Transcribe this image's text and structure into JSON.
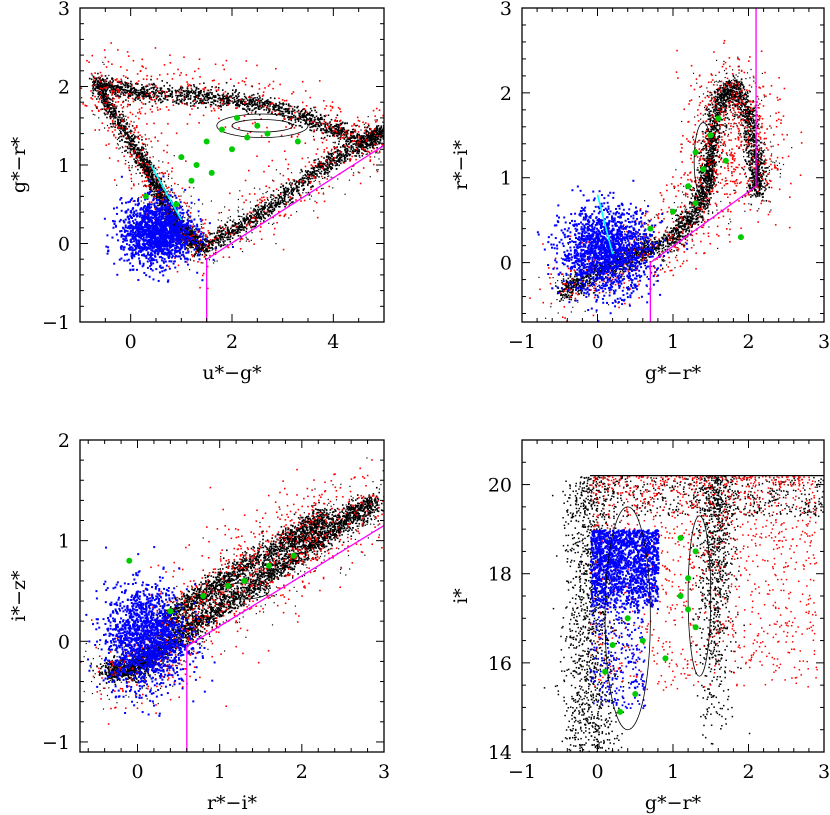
{
  "chart_data": [
    {
      "type": "scatter",
      "panel": "top-left",
      "xlabel": "u*−g*",
      "ylabel": "g*−r*",
      "xlim": [
        -1,
        5
      ],
      "ylim": [
        -1,
        3
      ],
      "xticks": [
        0,
        2,
        4
      ],
      "yticks": [
        -1,
        0,
        1,
        2,
        3
      ],
      "series_colors": {
        "black": "#000000",
        "red": "#ff0000",
        "blue": "#0000ff",
        "green": "#00cc00",
        "magenta": "#ff00ff",
        "cyan": "#00ffff"
      },
      "black_locus": [
        [
          -0.7,
          2.05
        ],
        [
          -0.3,
          1.6
        ],
        [
          0.2,
          1.1
        ],
        [
          0.5,
          0.7
        ],
        [
          0.8,
          0.35
        ],
        [
          1.1,
          0.1
        ],
        [
          1.4,
          -0.05
        ],
        [
          2.2,
          0.25
        ],
        [
          3.0,
          0.6
        ],
        [
          3.8,
          1.0
        ],
        [
          4.6,
          1.3
        ],
        [
          5.0,
          1.45
        ]
      ],
      "black_upper_arc": [
        [
          -0.7,
          2.05
        ],
        [
          0.0,
          1.95
        ],
        [
          1.0,
          1.9
        ],
        [
          2.0,
          1.85
        ],
        [
          3.0,
          1.7
        ],
        [
          3.9,
          1.5
        ],
        [
          4.6,
          1.3
        ]
      ],
      "blue_center": [
        0.5,
        0.15
      ],
      "blue_spread": [
        0.35,
        0.2
      ],
      "green_points": [
        [
          1.0,
          1.1
        ],
        [
          1.2,
          0.8
        ],
        [
          1.5,
          1.3
        ],
        [
          1.8,
          1.45
        ],
        [
          2.1,
          1.6
        ],
        [
          2.3,
          1.35
        ],
        [
          2.5,
          1.5
        ],
        [
          0.9,
          0.5
        ],
        [
          1.3,
          1.0
        ],
        [
          2.0,
          1.2
        ],
        [
          2.7,
          1.4
        ],
        [
          3.3,
          1.3
        ],
        [
          1.6,
          0.9
        ],
        [
          0.3,
          0.6
        ]
      ],
      "magenta_line": [
        [
          1.5,
          -1.0
        ],
        [
          1.5,
          -0.2
        ],
        [
          5.0,
          1.25
        ]
      ],
      "cyan_line": [
        [
          0.4,
          1.0
        ],
        [
          1.0,
          0.3
        ]
      ],
      "contours": [
        {
          "center": [
            2.6,
            1.5
          ],
          "rx": 0.6,
          "ry": 0.08
        },
        {
          "center": [
            2.6,
            1.5
          ],
          "rx": 0.9,
          "ry": 0.15
        }
      ]
    },
    {
      "type": "scatter",
      "panel": "top-right",
      "xlabel": "g*−r*",
      "ylabel": "r*−i*",
      "xlim": [
        -1,
        3
      ],
      "ylim": [
        -0.7,
        3
      ],
      "xticks": [
        -1,
        0,
        1,
        2,
        3
      ],
      "yticks": [
        0,
        1,
        2,
        3
      ],
      "series_colors": {
        "black": "#000000",
        "red": "#ff0000",
        "blue": "#0000ff",
        "green": "#00cc00",
        "magenta": "#ff00ff",
        "cyan": "#00ffff"
      },
      "black_locus": [
        [
          -0.5,
          -0.35
        ],
        [
          0.0,
          -0.1
        ],
        [
          0.5,
          0.1
        ],
        [
          1.0,
          0.3
        ],
        [
          1.3,
          0.6
        ],
        [
          1.45,
          1.0
        ],
        [
          1.5,
          1.4
        ],
        [
          1.6,
          1.9
        ],
        [
          1.8,
          2.1
        ],
        [
          2.0,
          1.7
        ],
        [
          2.1,
          1.2
        ],
        [
          2.1,
          0.8
        ]
      ],
      "blue_center": [
        0.1,
        0.15
      ],
      "blue_spread": [
        0.3,
        0.25
      ],
      "green_points": [
        [
          1.2,
          0.9
        ],
        [
          1.3,
          0.7
        ],
        [
          1.4,
          1.1
        ],
        [
          1.5,
          1.5
        ],
        [
          1.3,
          1.3
        ],
        [
          1.6,
          1.7
        ],
        [
          1.7,
          1.2
        ],
        [
          1.0,
          0.6
        ],
        [
          0.7,
          0.4
        ],
        [
          1.9,
          0.3
        ]
      ],
      "magenta_line": [
        [
          0.7,
          -0.7
        ],
        [
          0.7,
          0.0
        ],
        [
          2.1,
          0.9
        ],
        [
          2.1,
          3.0
        ]
      ],
      "cyan_line": [
        [
          0.0,
          0.8
        ],
        [
          0.2,
          0.1
        ]
      ],
      "contours": [
        {
          "center": [
            1.4,
            1.2
          ],
          "rx": 0.12,
          "ry": 0.45
        }
      ]
    },
    {
      "type": "scatter",
      "panel": "bottom-left",
      "xlabel": "r*−i*",
      "ylabel": "i*−z*",
      "xlim": [
        -0.7,
        3
      ],
      "ylim": [
        -1.1,
        2
      ],
      "xticks": [
        0,
        1,
        2,
        3
      ],
      "yticks": [
        -1,
        0,
        1,
        2
      ],
      "series_colors": {
        "black": "#000000",
        "red": "#ff0000",
        "blue": "#0000ff",
        "green": "#00cc00",
        "magenta": "#ff00ff"
      },
      "black_locus": [
        [
          -0.4,
          -0.3
        ],
        [
          0.0,
          -0.25
        ],
        [
          0.3,
          -0.05
        ],
        [
          0.8,
          0.25
        ],
        [
          1.4,
          0.55
        ],
        [
          2.0,
          0.9
        ],
        [
          2.5,
          1.2
        ],
        [
          2.9,
          1.4
        ]
      ],
      "black_upper_arc": [
        [
          0.3,
          0.2
        ],
        [
          1.0,
          0.6
        ],
        [
          1.8,
          1.0
        ],
        [
          2.3,
          1.25
        ]
      ],
      "blue_center": [
        0.1,
        0.05
      ],
      "blue_spread": [
        0.25,
        0.25
      ],
      "green_points": [
        [
          0.8,
          0.45
        ],
        [
          1.1,
          0.55
        ],
        [
          1.3,
          0.6
        ],
        [
          1.6,
          0.75
        ],
        [
          0.4,
          0.3
        ],
        [
          -0.1,
          0.8
        ],
        [
          1.9,
          0.85
        ]
      ],
      "magenta_line": [
        [
          0.6,
          -1.1
        ],
        [
          0.6,
          -0.05
        ],
        [
          3.0,
          1.15
        ]
      ],
      "contours": [
        {
          "center": [
            1.3,
            0.5
          ],
          "rx": 0.3,
          "ry": 0.08
        }
      ]
    },
    {
      "type": "scatter",
      "panel": "bottom-right",
      "xlabel": "g*−r*",
      "ylabel": "i*",
      "xlim": [
        -1,
        3
      ],
      "ylim": [
        14,
        21
      ],
      "xticks": [
        -1,
        0,
        1,
        2,
        3
      ],
      "yticks": [
        14,
        16,
        18,
        20
      ],
      "series_colors": {
        "black": "#000000",
        "red": "#ff0000",
        "blue": "#0000ff",
        "green": "#00cc00"
      },
      "limit_line_y": 20.2,
      "blue_box": {
        "x": [
          -0.1,
          0.8
        ],
        "y": [
          17.2,
          19.0
        ]
      },
      "green_points": [
        [
          1.1,
          18.8
        ],
        [
          1.3,
          18.5
        ],
        [
          1.2,
          17.9
        ],
        [
          1.1,
          17.5
        ],
        [
          0.4,
          17.0
        ],
        [
          0.6,
          16.5
        ],
        [
          0.9,
          16.1
        ],
        [
          0.5,
          15.3
        ],
        [
          0.3,
          14.9
        ],
        [
          0.1,
          15.8
        ],
        [
          1.2,
          17.2
        ],
        [
          1.3,
          16.8
        ],
        [
          0.2,
          16.4
        ]
      ],
      "contours": [
        {
          "center": [
            0.4,
            17.0
          ],
          "rx": 0.3,
          "ry": 2.5
        },
        {
          "center": [
            1.35,
            17.5
          ],
          "rx": 0.15,
          "ry": 1.8
        }
      ]
    }
  ]
}
